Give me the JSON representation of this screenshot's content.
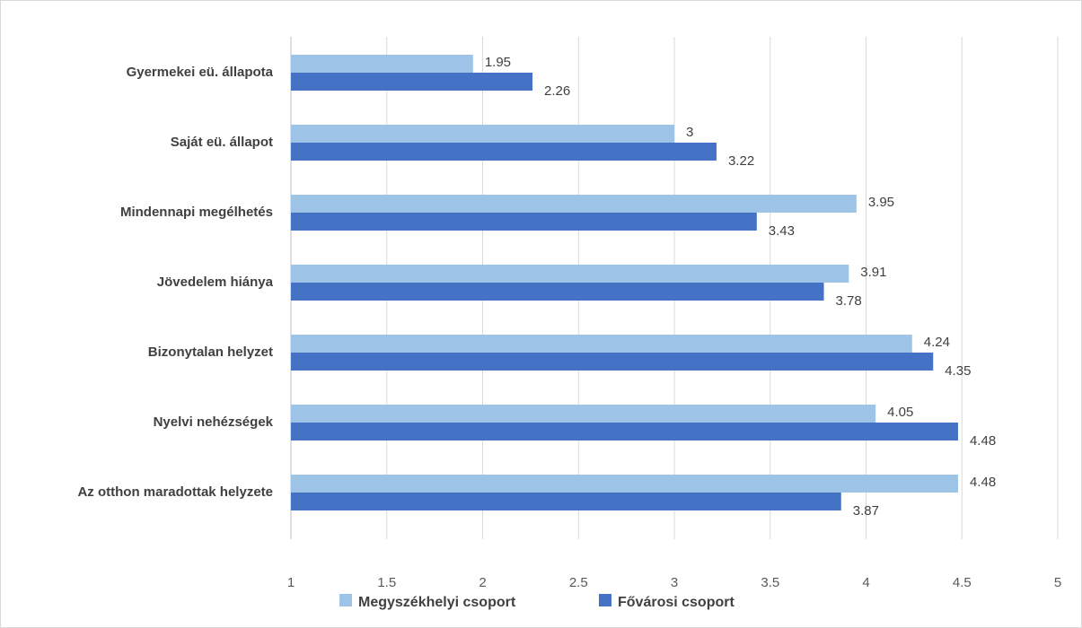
{
  "chart_data": {
    "type": "bar",
    "orientation": "horizontal",
    "categories": [
      "Gyermekei eü. állapota",
      "Saját eü. állapot",
      "Mindennapi megélhetés",
      "Jövedelem hiánya",
      "Bizonytalan helyzet",
      "Nyelvi nehézségek",
      "Az otthon maradottak helyzete"
    ],
    "series": [
      {
        "name": "Megyszékhelyi csoport",
        "color": "#9dc3e6",
        "values": [
          1.95,
          3,
          3.95,
          3.91,
          4.24,
          4.05,
          4.48
        ]
      },
      {
        "name": "Fővárosi csoport",
        "color": "#4472c4",
        "values": [
          2.26,
          3.22,
          3.43,
          3.78,
          4.35,
          4.48,
          3.87
        ]
      }
    ],
    "xlim": [
      1,
      5
    ],
    "xticks": [
      "1",
      "1.5",
      "2",
      "2.5",
      "3",
      "3.5",
      "4",
      "4.5",
      "5"
    ],
    "grid": true,
    "legend_position": "bottom",
    "data_labels": true
  }
}
